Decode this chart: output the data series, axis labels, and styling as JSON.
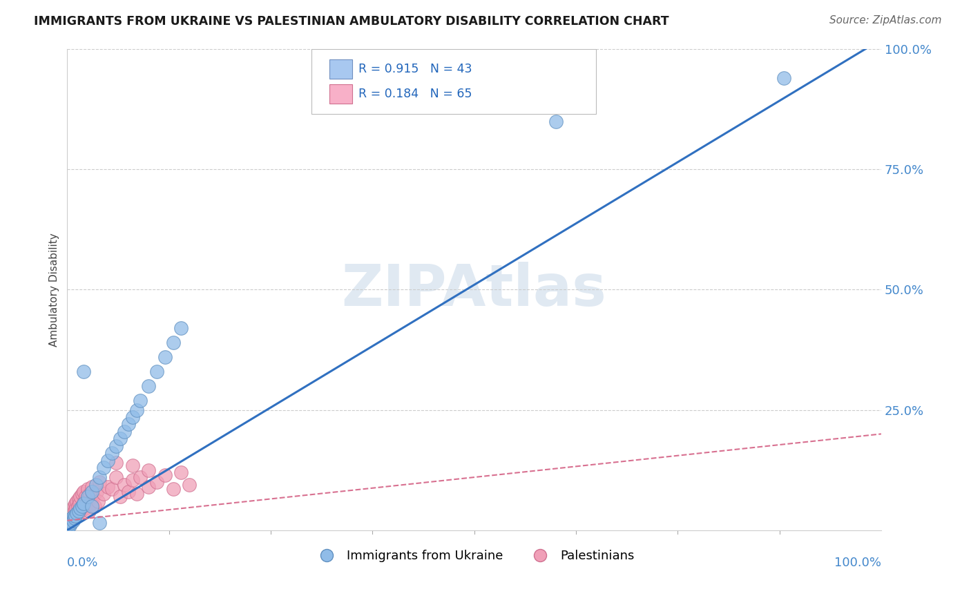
{
  "title": "IMMIGRANTS FROM UKRAINE VS PALESTINIAN AMBULATORY DISABILITY CORRELATION CHART",
  "source": "Source: ZipAtlas.com",
  "ylabel": "Ambulatory Disability",
  "watermark": "ZIPAtlas",
  "ukraine_color": "#90bce8",
  "ukraine_edge": "#6090c0",
  "palest_color": "#f0a0b8",
  "palest_edge": "#d07090",
  "ukraine_line_color": "#3070c0",
  "palest_line_color": "#d87090",
  "tick_color": "#4488cc",
  "background_color": "#ffffff",
  "grid_color": "#cccccc",
  "legend_box_color": "#aaaaaa",
  "legend_text_color": "#2266bb",
  "ukr_R": "0.915",
  "ukr_N": "43",
  "pal_R": "0.184",
  "pal_N": "65",
  "ukr_line_slope": 1.02,
  "ukr_line_intercept": 0.0,
  "pal_line_slope": 0.18,
  "pal_line_intercept": 2.0,
  "ukr_scatter_x": [
    0.05,
    0.1,
    0.15,
    0.2,
    0.25,
    0.3,
    0.35,
    0.4,
    0.5,
    0.6,
    0.7,
    0.8,
    0.9,
    1.0,
    1.2,
    1.4,
    1.6,
    1.8,
    2.0,
    2.5,
    3.0,
    3.5,
    4.0,
    4.5,
    5.0,
    5.5,
    6.0,
    6.5,
    7.0,
    7.5,
    8.0,
    8.5,
    9.0,
    10.0,
    11.0,
    12.0,
    13.0,
    14.0,
    2.0,
    3.0,
    4.0,
    60.0,
    88.0
  ],
  "ukr_scatter_y": [
    0.5,
    1.0,
    0.8,
    1.5,
    1.2,
    1.0,
    2.0,
    1.8,
    1.5,
    2.5,
    2.0,
    3.0,
    2.5,
    3.0,
    3.5,
    4.0,
    4.5,
    5.0,
    5.5,
    7.0,
    8.0,
    9.5,
    11.0,
    13.0,
    14.5,
    16.0,
    17.5,
    19.0,
    20.5,
    22.0,
    23.5,
    25.0,
    27.0,
    30.0,
    33.0,
    36.0,
    39.0,
    42.0,
    33.0,
    5.0,
    1.5,
    85.0,
    94.0
  ],
  "pal_scatter_x": [
    0.05,
    0.08,
    0.1,
    0.12,
    0.15,
    0.18,
    0.2,
    0.25,
    0.3,
    0.35,
    0.4,
    0.45,
    0.5,
    0.55,
    0.6,
    0.65,
    0.7,
    0.75,
    0.8,
    0.9,
    1.0,
    1.1,
    1.2,
    1.3,
    1.4,
    1.5,
    1.6,
    1.7,
    1.8,
    1.9,
    2.0,
    2.1,
    2.2,
    2.3,
    2.4,
    2.5,
    2.6,
    2.7,
    2.8,
    2.9,
    3.0,
    3.2,
    3.4,
    3.6,
    3.8,
    4.0,
    4.5,
    5.0,
    5.5,
    6.0,
    6.5,
    7.0,
    7.5,
    8.0,
    8.5,
    9.0,
    10.0,
    11.0,
    12.0,
    13.0,
    14.0,
    15.0,
    6.0,
    8.0,
    10.0
  ],
  "pal_scatter_y": [
    1.0,
    0.8,
    1.5,
    1.2,
    2.0,
    1.8,
    2.5,
    2.2,
    1.5,
    3.0,
    2.8,
    3.5,
    3.0,
    4.0,
    3.8,
    2.5,
    4.5,
    3.2,
    5.0,
    4.0,
    5.5,
    4.5,
    6.0,
    5.0,
    6.5,
    5.5,
    7.0,
    4.0,
    7.5,
    5.0,
    8.0,
    6.0,
    4.5,
    7.0,
    5.5,
    8.5,
    6.5,
    4.0,
    7.5,
    5.5,
    9.0,
    7.0,
    5.0,
    8.0,
    6.0,
    10.0,
    7.5,
    9.0,
    8.5,
    11.0,
    7.0,
    9.5,
    8.0,
    10.5,
    7.5,
    11.0,
    9.0,
    10.0,
    11.5,
    8.5,
    12.0,
    9.5,
    14.0,
    13.5,
    12.5
  ],
  "xlim": [
    0,
    100
  ],
  "ylim": [
    0,
    100
  ],
  "ytick_vals": [
    0,
    25,
    50,
    75,
    100
  ],
  "ytick_labels": [
    "",
    "25.0%",
    "50.0%",
    "75.0%",
    "100.0%"
  ]
}
